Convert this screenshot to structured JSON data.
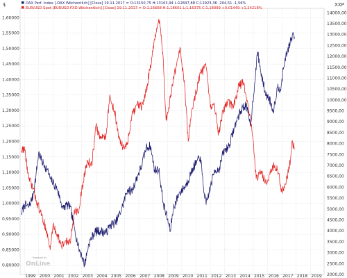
{
  "chart_data": {
    "type": "line",
    "y_left_unit": "$",
    "y_right_unit": "XXP",
    "y_left_range": [
      0.77,
      1.63
    ],
    "y_right_range": [
      2000,
      14200
    ],
    "x_range": [
      1998.7,
      2019.95
    ],
    "y_left_ticks": [
      "0,80000",
      "0,85000",
      "0,90000",
      "0,95000",
      "1,00000",
      "1,05000",
      "1,10000",
      "1,15000",
      "1,20000",
      "1,25000",
      "1,30000",
      "1,35000",
      "1,40000",
      "1,45000",
      "1,50000",
      "1,55000",
      "1,60000"
    ],
    "y_left_tick_values": [
      0.8,
      0.85,
      0.9,
      0.95,
      1.0,
      1.05,
      1.1,
      1.15,
      1.2,
      1.25,
      1.3,
      1.35,
      1.4,
      1.45,
      1.5,
      1.55,
      1.6
    ],
    "y_right_ticks": [
      "2000,00",
      "2500,00",
      "3000,00",
      "3500,00",
      "4000,00",
      "4500,00",
      "5000,00",
      "5500,00",
      "6000,00",
      "6500,00",
      "7000,00",
      "7500,00",
      "8000,00",
      "8500,00",
      "9000,00",
      "9500,00",
      "10000,00",
      "10500,00",
      "11000,00",
      "11500,00",
      "12000,00",
      "12500,00",
      "13000,00",
      "13500,00",
      "14000,00"
    ],
    "y_right_tick_values": [
      2000,
      2500,
      3000,
      3500,
      4000,
      4500,
      5000,
      5500,
      6000,
      6500,
      7000,
      7500,
      8000,
      8500,
      9000,
      9500,
      10000,
      10500,
      11000,
      11500,
      12000,
      12500,
      13000,
      13500,
      14000
    ],
    "x_ticks": [
      "1999",
      "2000",
      "2001",
      "2002",
      "2003",
      "2004",
      "2005",
      "2006",
      "2007",
      "2008",
      "2009",
      "2010",
      "2011",
      "2012",
      "2013",
      "2014",
      "2015",
      "2016",
      "2017",
      "2018",
      "2019"
    ],
    "x_tick_values": [
      1999,
      2000,
      2001,
      2002,
      2003,
      2004,
      2005,
      2006,
      2007,
      2008,
      2009,
      2010,
      2011,
      2012,
      2013,
      2014,
      2015,
      2016,
      2017,
      2018,
      2019
    ],
    "legend": [
      {
        "text": "DAX Perf. Index [.DAX Wöchentlich] [Close] 19.11.2017 = O:13150,75 H:13163,94 L:12847,88 C:12923,36 -204,51 -1,56%",
        "color": "#1b1b6e"
      },
      {
        "text": "EUR/USD Spot [EURUSD FXD Wöchentlich] [Close] 19.11.2017 = O:1,16668 H:1,18601 L:1,16375 C:1,18099 +0,01449 +1,24218%",
        "color": "#e32222"
      }
    ],
    "series": [
      {
        "name": "DAX Perf. Index",
        "axis": "right",
        "color": "#1b1b6e",
        "x": [
          1998.8,
          1999.0,
          1999.3,
          1999.6,
          1999.8,
          2000.0,
          2000.2,
          2000.4,
          2000.6,
          2000.8,
          2001.0,
          2001.3,
          2001.7,
          2001.9,
          2002.2,
          2002.5,
          2002.8,
          2003.0,
          2003.2,
          2003.5,
          2003.9,
          2004.3,
          2004.7,
          2005.0,
          2005.4,
          2005.8,
          2006.2,
          2006.5,
          2006.9,
          2007.2,
          2007.5,
          2007.8,
          2008.1,
          2008.4,
          2008.7,
          2008.9,
          2009.2,
          2009.4,
          2009.8,
          2010.3,
          2010.8,
          2011.3,
          2011.5,
          2011.7,
          2012.0,
          2012.3,
          2012.6,
          2012.9,
          2013.3,
          2013.8,
          2014.2,
          2014.5,
          2014.8,
          2015.1,
          2015.3,
          2015.6,
          2015.9,
          2016.1,
          2016.4,
          2016.7,
          2016.9,
          2017.2,
          2017.5,
          2017.8,
          2017.88
        ],
        "y": [
          4800,
          5200,
          5100,
          5600,
          6500,
          7600,
          7200,
          7000,
          6800,
          6400,
          6200,
          5900,
          5000,
          5200,
          5100,
          4100,
          3200,
          2900,
          2450,
          3400,
          3950,
          4000,
          3900,
          4250,
          4400,
          5000,
          5900,
          5800,
          6500,
          7000,
          7800,
          7900,
          6800,
          6800,
          5300,
          4800,
          4000,
          5000,
          5700,
          6100,
          6900,
          7400,
          6100,
          5200,
          6000,
          6800,
          6800,
          7600,
          7900,
          9000,
          9600,
          9800,
          8800,
          10800,
          12200,
          11000,
          10200,
          10100,
          9500,
          10600,
          10500,
          11800,
          12500,
          13000,
          12900
        ]
      },
      {
        "name": "EUR/USD Spot",
        "axis": "left",
        "color": "#e32222",
        "x": [
          1998.8,
          1999.0,
          1999.3,
          1999.6,
          1999.9,
          2000.2,
          2000.5,
          2000.8,
          2001.0,
          2001.3,
          2001.6,
          2001.9,
          2002.2,
          2002.5,
          2002.8,
          2003.0,
          2003.4,
          2003.7,
          2004.0,
          2004.3,
          2004.7,
          2004.95,
          2005.3,
          2005.6,
          2005.9,
          2006.2,
          2006.5,
          2006.9,
          2007.2,
          2007.5,
          2007.9,
          2008.2,
          2008.45,
          2008.7,
          2008.9,
          2009.1,
          2009.4,
          2009.9,
          2010.2,
          2010.45,
          2010.7,
          2011.0,
          2011.3,
          2011.7,
          2012.0,
          2012.3,
          2012.55,
          2012.9,
          2013.2,
          2013.6,
          2014.0,
          2014.3,
          2014.6,
          2014.85,
          2015.0,
          2015.2,
          2015.5,
          2015.9,
          2016.1,
          2016.4,
          2016.7,
          2016.9,
          2017.0,
          2017.3,
          2017.6,
          2017.7,
          2017.88
        ],
        "y": [
          1.17,
          1.18,
          1.08,
          1.05,
          1.0,
          0.96,
          0.92,
          0.85,
          0.93,
          0.9,
          0.86,
          0.88,
          0.87,
          0.98,
          0.97,
          1.04,
          1.14,
          1.12,
          1.25,
          1.21,
          1.22,
          1.34,
          1.3,
          1.21,
          1.18,
          1.19,
          1.28,
          1.32,
          1.31,
          1.36,
          1.47,
          1.55,
          1.59,
          1.47,
          1.27,
          1.31,
          1.4,
          1.5,
          1.38,
          1.2,
          1.3,
          1.36,
          1.42,
          1.44,
          1.31,
          1.32,
          1.22,
          1.3,
          1.33,
          1.31,
          1.38,
          1.39,
          1.33,
          1.25,
          1.2,
          1.08,
          1.1,
          1.07,
          1.09,
          1.12,
          1.11,
          1.06,
          1.04,
          1.07,
          1.14,
          1.2,
          1.18
        ]
      }
    ],
    "watermark": {
      "small": "Powered by",
      "big": "OnLine"
    }
  }
}
